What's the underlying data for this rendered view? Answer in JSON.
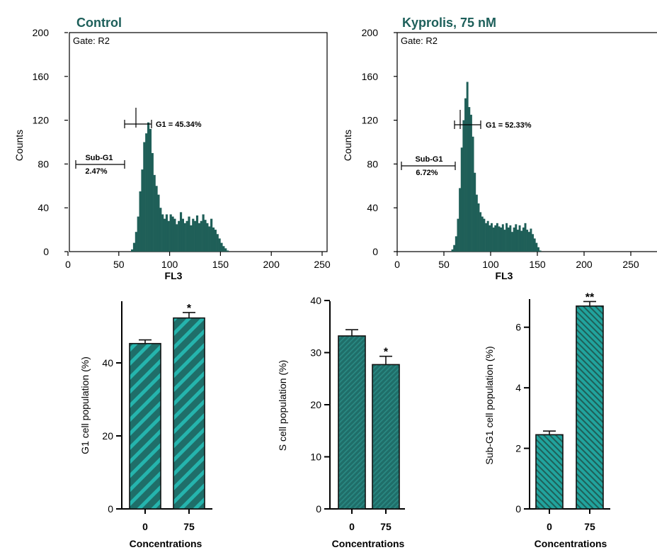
{
  "chart_data": [
    {
      "type": "histogram",
      "title": "Control",
      "gate_label": "Gate: R2",
      "xlabel": "FL3",
      "ylabel": "Counts",
      "xlim": [
        0,
        260
      ],
      "ylim": [
        0,
        200
      ],
      "xticks": [
        "0",
        "50",
        "100",
        "150",
        "200",
        "250"
      ],
      "yticks": [
        "0",
        "40",
        "80",
        "120",
        "160",
        "200"
      ],
      "color": "#1f5f58",
      "annotations": {
        "g1": "G1 = 45.34%",
        "subg1_name": "Sub-G1",
        "subg1_value": "2.47%"
      },
      "x": [
        63,
        65,
        67,
        69,
        71,
        73,
        75,
        77,
        79,
        81,
        83,
        85,
        87,
        89,
        91,
        93,
        95,
        97,
        99,
        101,
        103,
        105,
        107,
        109,
        111,
        113,
        115,
        117,
        119,
        121,
        123,
        125,
        127,
        129,
        131,
        133,
        135,
        137,
        139,
        141,
        143,
        145,
        147,
        149,
        151,
        153,
        155,
        157
      ],
      "counts": [
        2,
        8,
        18,
        32,
        55,
        75,
        100,
        108,
        118,
        112,
        90,
        70,
        60,
        52,
        40,
        34,
        30,
        34,
        28,
        34,
        32,
        30,
        25,
        28,
        36,
        30,
        26,
        28,
        32,
        24,
        30,
        28,
        33,
        26,
        28,
        34,
        29,
        26,
        23,
        30,
        22,
        20,
        16,
        12,
        8,
        5,
        3,
        1
      ]
    },
    {
      "type": "histogram",
      "title": "Kyprolis, 75 nM",
      "gate_label": "Gate: R2",
      "xlabel": "FL3",
      "ylabel": "Counts",
      "xlim": [
        0,
        260
      ],
      "ylim": [
        0,
        200
      ],
      "xticks": [
        "0",
        "50",
        "100",
        "150",
        "200",
        "250"
      ],
      "yticks": [
        "0",
        "40",
        "80",
        "120",
        "160",
        "200"
      ],
      "color": "#1f5f58",
      "annotations": {
        "g1": "G1 = 52.33%",
        "subg1_name": "Sub-G1",
        "subg1_value": "6.72%"
      },
      "x": [
        59,
        61,
        63,
        65,
        67,
        69,
        71,
        73,
        75,
        77,
        79,
        81,
        83,
        85,
        87,
        89,
        91,
        93,
        95,
        97,
        99,
        101,
        103,
        105,
        107,
        109,
        111,
        113,
        115,
        117,
        119,
        121,
        123,
        125,
        127,
        129,
        131,
        133,
        135,
        137,
        139,
        141,
        143,
        145,
        147,
        149,
        151,
        153
      ],
      "counts": [
        2,
        6,
        14,
        30,
        58,
        95,
        120,
        140,
        155,
        132,
        125,
        105,
        72,
        52,
        44,
        36,
        32,
        30,
        26,
        28,
        24,
        26,
        22,
        24,
        26,
        23,
        22,
        25,
        20,
        26,
        22,
        24,
        18,
        22,
        25,
        20,
        24,
        19,
        22,
        26,
        20,
        18,
        21,
        16,
        12,
        8,
        4,
        1
      ]
    },
    {
      "type": "bar",
      "title": "",
      "categories": [
        "0",
        "75"
      ],
      "values": [
        45.3,
        52.3
      ],
      "errors": [
        1.0,
        1.5
      ],
      "significance": [
        "",
        "*"
      ],
      "ylabel": "G1 cell population (%)",
      "xlabel": "Concentrations",
      "ylim": [
        0,
        60
      ],
      "yticks": [
        "0",
        "20",
        "40"
      ],
      "fill": "#1f6e69",
      "stripe": "#25b4ad"
    },
    {
      "type": "bar",
      "title": "",
      "categories": [
        "0",
        "75"
      ],
      "values": [
        33.2,
        27.7
      ],
      "errors": [
        1.2,
        1.6
      ],
      "significance": [
        "",
        "*"
      ],
      "ylabel": "S cell population (%)",
      "xlabel": "Concentrations",
      "ylim": [
        0,
        40
      ],
      "yticks": [
        "0",
        "10",
        "20",
        "30",
        "40"
      ],
      "fill": "#1f6e69",
      "stripe": "#2a8a84"
    },
    {
      "type": "bar",
      "title": "",
      "categories": [
        "0",
        "75"
      ],
      "values": [
        2.45,
        6.7
      ],
      "errors": [
        0.12,
        0.15
      ],
      "significance": [
        "",
        "**"
      ],
      "ylabel": "Sub-G1 cell population (%)",
      "xlabel": "Concentrations",
      "ylim": [
        0,
        7
      ],
      "yticks": [
        "0",
        "2",
        "4",
        "6"
      ],
      "fill": "#21a39d",
      "stripe": "#1f5f58"
    }
  ]
}
